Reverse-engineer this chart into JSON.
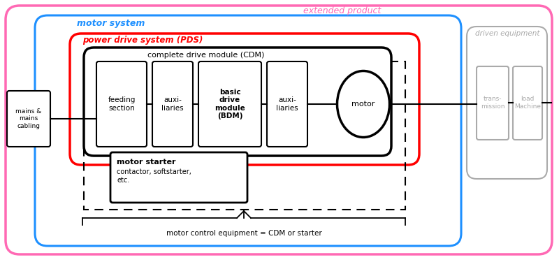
{
  "extended_product_label": "extended product",
  "motor_system_label": "motor system",
  "pds_label": "power drive system (PDS)",
  "cdm_label": "complete drive module (CDM)",
  "mains_label": "mains &\nmains\ncabling",
  "feeding_label": "feeding\nsection",
  "aux1_label": "auxi-\nliaries",
  "bdm_label": "basic\ndrive\nmodule\n(BDM)",
  "aux2_label": "auxi-\nliaries",
  "motor_label": "motor",
  "driven_equipment_label": "driven equipment",
  "transmission_label": "trans-\nmission",
  "load_label": "load\nMachine",
  "motor_starter_title": "motor starter",
  "motor_starter_sub": "contactor, softstarter,\netc.",
  "motor_control_label": "motor control equipment = CDM or starter",
  "color_extended": "#FF69B4",
  "color_motor_system": "#1E90FF",
  "color_pds": "#FF0000",
  "color_cdm": "#000000",
  "color_driven": "#AAAAAA",
  "bg_color": "#FFFFFF"
}
